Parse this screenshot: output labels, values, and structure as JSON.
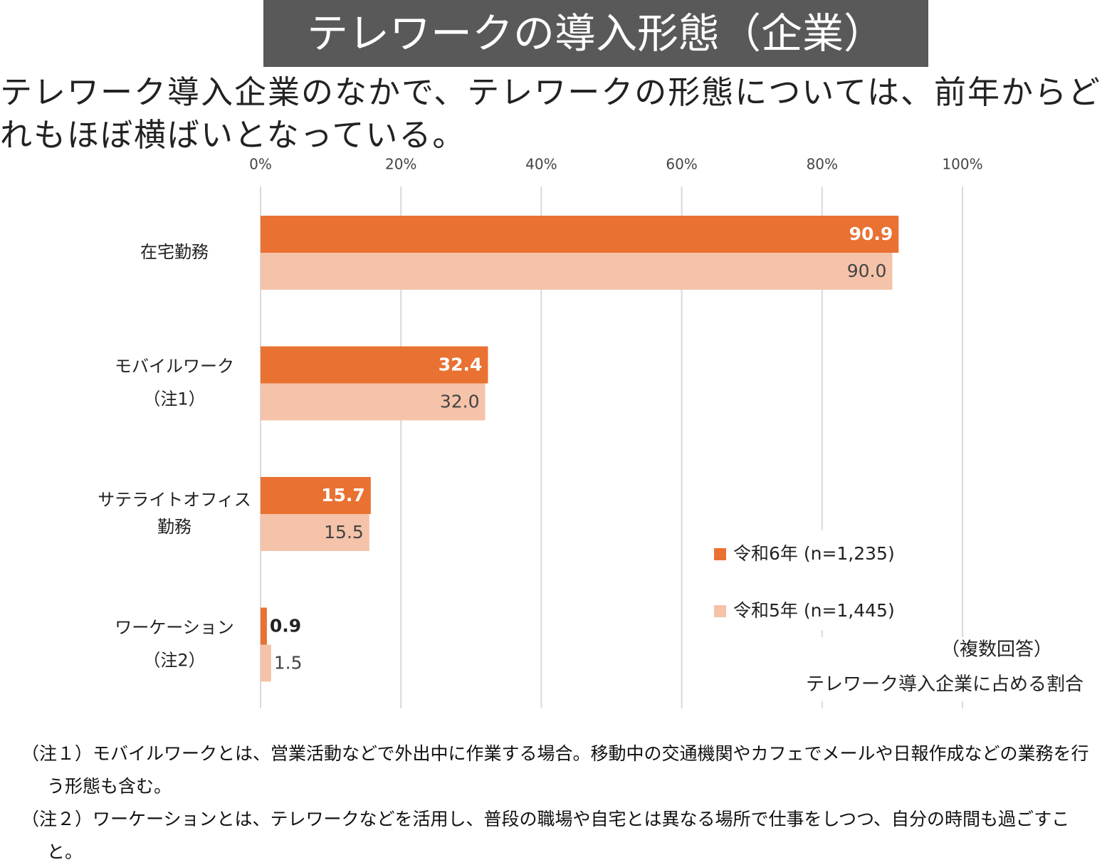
{
  "chart_data": {
    "type": "bar",
    "orientation": "horizontal",
    "title": "テレワークの導入形態（企業）",
    "subtitle": "テレワーク導入企業のなかで、テレワークの形態については、前年からどれもほぼ横ばいとなっている。",
    "categories": [
      [
        "在宅勤務"
      ],
      [
        "モバイルワーク",
        "（注1）"
      ],
      [
        "サテライトオフィス",
        "勤務"
      ],
      [
        "ワーケーション",
        "（注2）"
      ]
    ],
    "series": [
      {
        "name": "令和6年 (n=1,235)",
        "color": "#e97132",
        "values": [
          90.9,
          32.4,
          15.7,
          0.9
        ]
      },
      {
        "name": "令和5年 (n=1,445)",
        "color": "#f5c3a9",
        "values": [
          90.0,
          32.0,
          15.5,
          1.5
        ],
        "value_labels": [
          "90.0",
          "32.0",
          "15.5",
          "1.5"
        ]
      }
    ],
    "xlim": [
      0,
      100
    ],
    "xticks": [
      {
        "value": 0,
        "label": "0%"
      },
      {
        "value": 20,
        "label": "20%"
      },
      {
        "value": 40,
        "label": "40%"
      },
      {
        "value": 60,
        "label": "60%"
      },
      {
        "value": 80,
        "label": "80%"
      },
      {
        "value": 100,
        "label": "100%"
      }
    ],
    "grid": true,
    "legend": "lower right",
    "annotations": [
      "（複数回答）",
      "テレワーク導入企業に占める割合"
    ],
    "notes": [
      {
        "label": "（注１）",
        "text": "モバイルワークとは、営業活動などで外出中に作業する場合。移動中の交通機関やカフェでメールや日報作成などの業務を行う形態も含む。"
      },
      {
        "label": "（注２）",
        "text": "ワーケーションとは、テレワークなどを活用し、普段の職場や自宅とは異なる場所で仕事をしつつ、自分の時間も過ごすこと。"
      }
    ]
  }
}
